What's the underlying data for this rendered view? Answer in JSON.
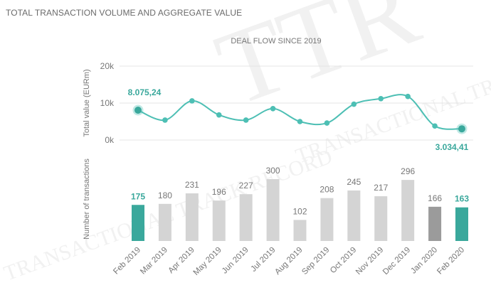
{
  "page_title": "TOTAL TRANSACTION VOLUME AND AGGREGATE VALUE",
  "watermark": "TTR Transactional Track Record",
  "colors": {
    "accent": "#3aa89c",
    "accent_line": "#4dbfb4",
    "bar_gray": "#d4d4d4",
    "bar_dark": "#9b9b9b",
    "grid": "#e4e4e4",
    "text": "#777777"
  },
  "chart_data": [
    {
      "type": "line",
      "title": "DEAL FLOW SINCE 2019",
      "ylabel": "Total value (EURm)",
      "y_ticks": [
        "20k",
        "10k",
        "0k"
      ],
      "ylim": [
        0,
        20000
      ],
      "categories": [
        "Feb 2019",
        "Mar 2019",
        "Apr 2019",
        "May 2019",
        "Jun 2019",
        "Jul 2019",
        "Aug 2019",
        "Sep 2019",
        "Oct 2019",
        "Nov 2019",
        "Dec 2019",
        "Jan 2020",
        "Feb 2020"
      ],
      "values": [
        8075.24,
        5400,
        10600,
        6800,
        5400,
        8500,
        5000,
        4600,
        9700,
        11200,
        11800,
        3800,
        3034.41
      ],
      "data_labels": [
        {
          "index": 0,
          "text": "8.075,24"
        },
        {
          "index": 12,
          "text": "3.034,41"
        }
      ],
      "highlight_points": [
        0,
        12
      ]
    },
    {
      "type": "bar",
      "ylabel": "Number of transactions",
      "categories": [
        "Feb 2019",
        "Mar 2019",
        "Apr 2019",
        "May 2019",
        "Jun 2019",
        "Jul 2019",
        "Aug 2019",
        "Sep 2019",
        "Oct 2019",
        "Nov 2019",
        "Dec 2019",
        "Jan 2020",
        "Feb 2020"
      ],
      "values": [
        175,
        180,
        231,
        196,
        227,
        300,
        102,
        208,
        245,
        217,
        296,
        166,
        163
      ],
      "bar_styles": [
        "accent",
        "gray",
        "gray",
        "gray",
        "gray",
        "gray",
        "gray",
        "gray",
        "gray",
        "gray",
        "gray",
        "dark",
        "accent"
      ],
      "highlight_labels": [
        0,
        12
      ]
    }
  ]
}
